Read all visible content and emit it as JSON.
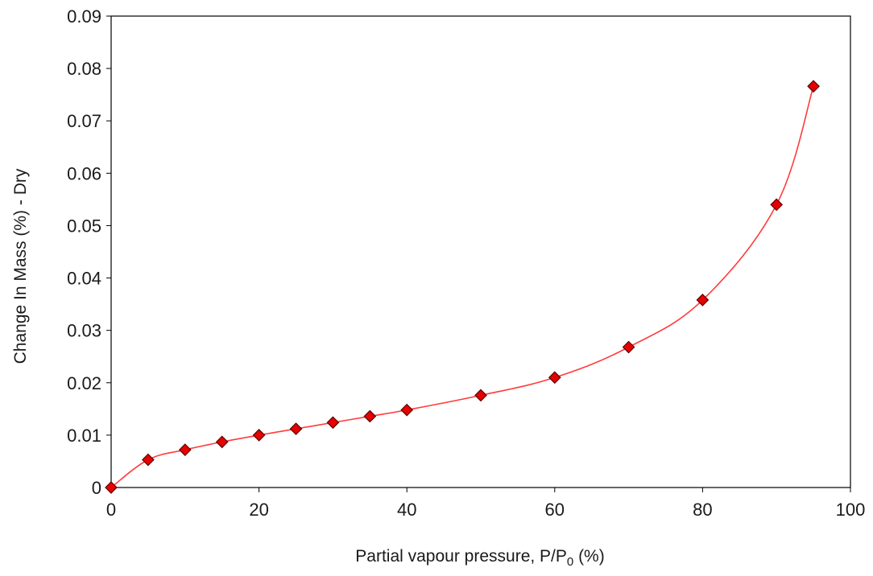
{
  "chart_data": {
    "type": "scatter",
    "title": "",
    "xlabel": {
      "prefix": "Partial vapour  pressure, P/P",
      "subscript": "0",
      "suffix": " (%)"
    },
    "ylabel": "Change In Mass (%) - Dry",
    "xlim": [
      0,
      100
    ],
    "ylim": [
      0,
      0.09
    ],
    "x_ticks": [
      0,
      20,
      40,
      60,
      80,
      100
    ],
    "x_tick_labels": [
      "0",
      "20",
      "40",
      "60",
      "80",
      "100"
    ],
    "y_ticks": [
      0,
      0.01,
      0.02,
      0.03,
      0.04,
      0.05,
      0.06,
      0.07,
      0.08,
      0.09
    ],
    "y_tick_labels": [
      "0",
      "0.01",
      "0.02",
      "0.03",
      "0.04",
      "0.05",
      "0.06",
      "0.07",
      "0.08",
      "0.09"
    ],
    "grid": false,
    "legend": "none",
    "series": [
      {
        "marker": "diamond",
        "line": "smooth",
        "x": [
          0,
          5,
          10,
          15,
          20,
          25,
          30,
          35,
          40,
          50,
          60,
          70,
          80,
          90,
          95
        ],
        "y": [
          0,
          0.0053,
          0.0072,
          0.0087,
          0.01,
          0.0112,
          0.0124,
          0.0136,
          0.0148,
          0.0176,
          0.021,
          0.0268,
          0.0358,
          0.054,
          0.0766
        ]
      }
    ],
    "colors": {
      "line": "#ff3b3b",
      "marker_fill": "#e60000",
      "marker_edge": "#5a0000",
      "axis": "#000000"
    }
  }
}
